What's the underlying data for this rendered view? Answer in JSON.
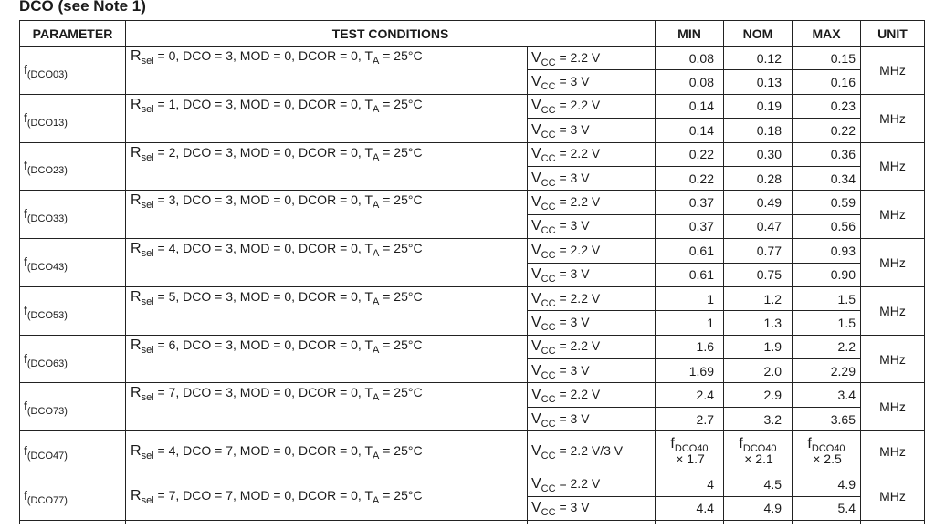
{
  "title": "DCO (see Note 1)",
  "headers": {
    "parameter": "PARAMETER",
    "test_conditions": "TEST CONDITIONS",
    "min": "MIN",
    "nom": "NOM",
    "max": "MAX",
    "unit": "UNIT"
  },
  "rows": [
    {
      "param_f": "f",
      "param_sub": "(DCO03)",
      "cond_pre": "R",
      "cond_sub": "sel",
      "cond_mid": " = 0, DCO = 3, MOD = 0, DCOR = 0, T",
      "cond_sub2": "A",
      "cond_post": " = 25°C",
      "v1_pre": "V",
      "v1_sub": "CC",
      "v1_post": " = 2.2 V",
      "min1": "0.08",
      "nom1": "0.12",
      "max1": "0.15",
      "v2_pre": "V",
      "v2_sub": "CC",
      "v2_post": " = 3 V",
      "min2": "0.08",
      "nom2": "0.13",
      "max2": "0.16",
      "unit": "MHz"
    },
    {
      "param_f": "f",
      "param_sub": "(DCO13)",
      "cond_pre": "R",
      "cond_sub": "sel",
      "cond_mid": " = 1, DCO = 3, MOD = 0, DCOR = 0, T",
      "cond_sub2": "A",
      "cond_post": " = 25°C",
      "v1_pre": "V",
      "v1_sub": "CC",
      "v1_post": " = 2.2 V",
      "min1": "0.14",
      "nom1": "0.19",
      "max1": "0.23",
      "v2_pre": "V",
      "v2_sub": "CC",
      "v2_post": " = 3 V",
      "min2": "0.14",
      "nom2": "0.18",
      "max2": "0.22",
      "unit": "MHz"
    },
    {
      "param_f": "f",
      "param_sub": "(DCO23)",
      "cond_pre": "R",
      "cond_sub": "sel",
      "cond_mid": " = 2, DCO = 3, MOD = 0, DCOR = 0, T",
      "cond_sub2": "A",
      "cond_post": " = 25°C",
      "v1_pre": "V",
      "v1_sub": "CC",
      "v1_post": " = 2.2 V",
      "min1": "0.22",
      "nom1": "0.30",
      "max1": "0.36",
      "v2_pre": "V",
      "v2_sub": "CC",
      "v2_post": " = 3 V",
      "min2": "0.22",
      "nom2": "0.28",
      "max2": "0.34",
      "unit": "MHz"
    },
    {
      "param_f": "f",
      "param_sub": "(DCO33)",
      "cond_pre": "R",
      "cond_sub": "sel",
      "cond_mid": " = 3, DCO = 3, MOD = 0, DCOR = 0, T",
      "cond_sub2": "A",
      "cond_post": " = 25°C",
      "v1_pre": "V",
      "v1_sub": "CC",
      "v1_post": " = 2.2 V",
      "min1": "0.37",
      "nom1": "0.49",
      "max1": "0.59",
      "v2_pre": "V",
      "v2_sub": "CC",
      "v2_post": " = 3 V",
      "min2": "0.37",
      "nom2": "0.47",
      "max2": "0.56",
      "unit": "MHz"
    },
    {
      "param_f": "f",
      "param_sub": "(DCO43)",
      "cond_pre": "R",
      "cond_sub": "sel",
      "cond_mid": " = 4, DCO = 3, MOD = 0, DCOR = 0, T",
      "cond_sub2": "A",
      "cond_post": " = 25°C",
      "v1_pre": "V",
      "v1_sub": "CC",
      "v1_post": " = 2.2 V",
      "min1": "0.61",
      "nom1": "0.77",
      "max1": "0.93",
      "v2_pre": "V",
      "v2_sub": "CC",
      "v2_post": " = 3 V",
      "min2": "0.61",
      "nom2": "0.75",
      "max2": "0.90",
      "unit": "MHz"
    },
    {
      "param_f": "f",
      "param_sub": "(DCO53)",
      "cond_pre": "R",
      "cond_sub": "sel",
      "cond_mid": " = 5, DCO = 3, MOD = 0, DCOR = 0, T",
      "cond_sub2": "A",
      "cond_post": " = 25°C",
      "v1_pre": "V",
      "v1_sub": "CC",
      "v1_post": " = 2.2 V",
      "min1": "1",
      "nom1": "1.2",
      "max1": "1.5",
      "v2_pre": "V",
      "v2_sub": "CC",
      "v2_post": " = 3 V",
      "min2": "1",
      "nom2": "1.3",
      "max2": "1.5",
      "unit": "MHz"
    },
    {
      "param_f": "f",
      "param_sub": "(DCO63)",
      "cond_pre": "R",
      "cond_sub": "sel",
      "cond_mid": " = 6, DCO = 3, MOD = 0, DCOR = 0, T",
      "cond_sub2": "A",
      "cond_post": " = 25°C",
      "v1_pre": "V",
      "v1_sub": "CC",
      "v1_post": " = 2.2 V",
      "min1": "1.6",
      "nom1": "1.9",
      "max1": "2.2",
      "v2_pre": "V",
      "v2_sub": "CC",
      "v2_post": " = 3 V",
      "min2": "1.69",
      "nom2": "2.0",
      "max2": "2.29",
      "unit": "MHz"
    },
    {
      "param_f": "f",
      "param_sub": "(DCO73)",
      "cond_pre": "R",
      "cond_sub": "sel",
      "cond_mid": " = 7, DCO = 3, MOD = 0, DCOR = 0, T",
      "cond_sub2": "A",
      "cond_post": " = 25°C",
      "v1_pre": "V",
      "v1_sub": "CC",
      "v1_post": " = 2.2 V",
      "min1": "2.4",
      "nom1": "2.9",
      "max1": "3.4",
      "v2_pre": "V",
      "v2_sub": "CC",
      "v2_post": " = 3 V",
      "min2": "2.7",
      "nom2": "3.2",
      "max2": "3.65",
      "unit": "MHz"
    }
  ],
  "row_dco47": {
    "param_f": "f",
    "param_sub": "(DCO47)",
    "cond_pre": "R",
    "cond_sub": "sel",
    "cond_mid": " = 4, DCO = 7, MOD = 0, DCOR = 0, T",
    "cond_sub2": "A",
    "cond_post": " = 25°C",
    "v_pre": "V",
    "v_sub": "CC",
    "v_post": " = 2.2 V/3 V",
    "min_f": "f",
    "min_sub": "DCO40",
    "min_mult": "× 1.7",
    "nom_f": "f",
    "nom_sub": "DCO40",
    "nom_mult": "× 2.1",
    "max_f": "f",
    "max_sub": "DCO40",
    "max_mult": "× 2.5",
    "unit": "MHz"
  },
  "row_dco77": {
    "param_f": "f",
    "param_sub": "(DCO77)",
    "cond_pre": "R",
    "cond_sub": "sel",
    "cond_mid": " = 7, DCO = 7, MOD = 0, DCOR = 0, T",
    "cond_sub2": "A",
    "cond_post": " = 25°C",
    "v1_pre": "V",
    "v1_sub": "CC",
    "v1_post": " = 2.2 V",
    "min1": "4",
    "nom1": "4.5",
    "max1": "4.9",
    "v2_pre": "V",
    "v2_sub": "CC",
    "v2_post": " = 3 V",
    "min2": "4.4",
    "nom2": "4.9",
    "max2": "5.4",
    "unit": "MHz"
  }
}
